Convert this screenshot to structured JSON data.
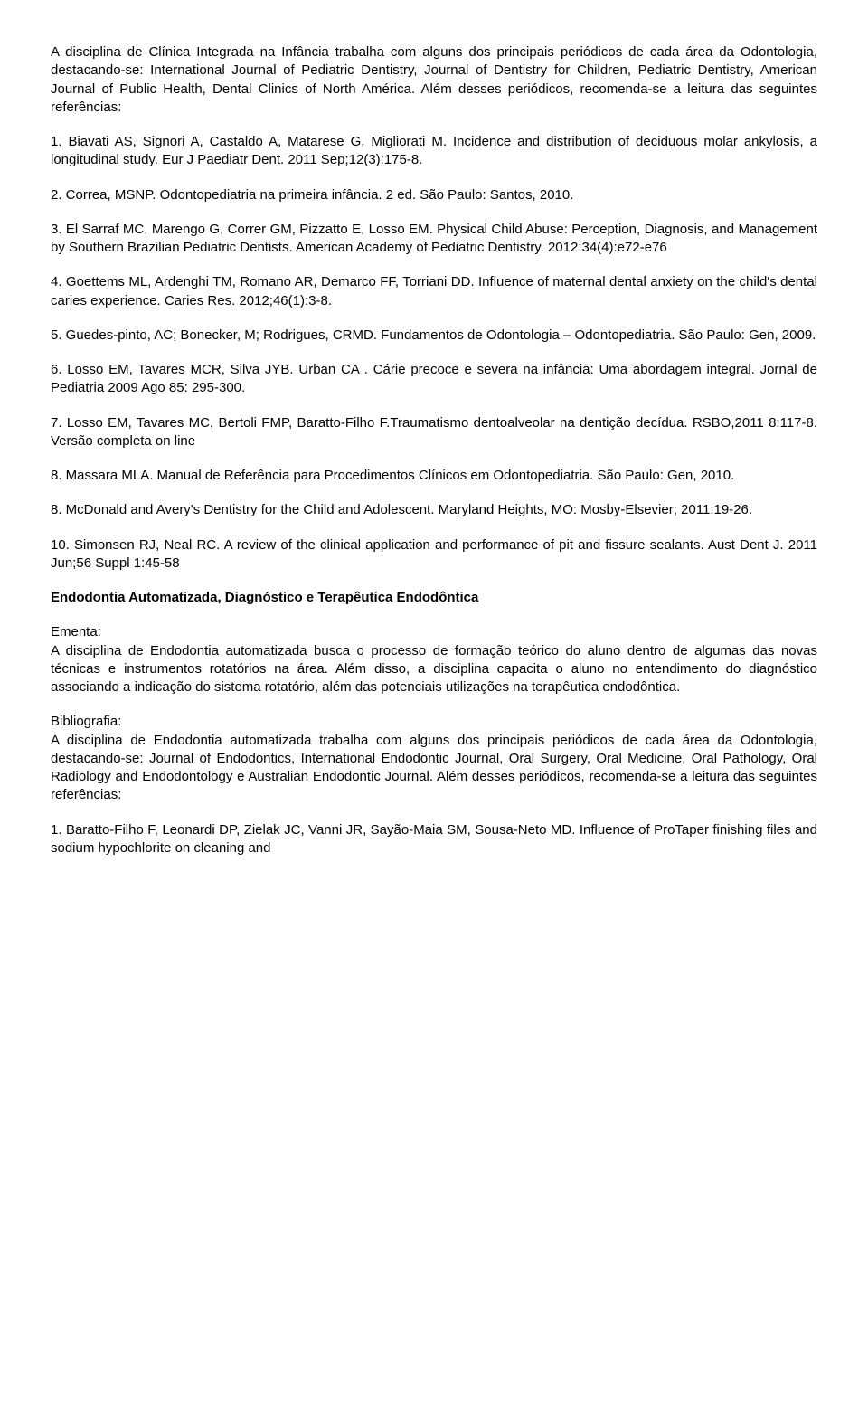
{
  "intro_paragraph": "A disciplina de Clínica Integrada na Infância trabalha com alguns dos principais periódicos de cada área da Odontologia, destacando-se: International Journal of Pediatric Dentistry, Journal of Dentistry for Children, Pediatric Dentistry, American Journal of Public Health, Dental Clinics of North América. Além desses periódicos, recomenda-se a leitura das seguintes referências:",
  "references": [
    "1. Biavati AS, Signori A, Castaldo A, Matarese G, Migliorati M. Incidence and distribution of deciduous molar ankylosis, a longitudinal study. Eur J Paediatr Dent. 2011 Sep;12(3):175-8.",
    "2. Correa, MSNP. Odontopediatria na primeira infância. 2 ed. São Paulo: Santos, 2010.",
    "3. El Sarraf MC, Marengo G, Correr GM, Pizzatto E, Losso EM. Physical Child Abuse: Perception, Diagnosis, and Management by Southern Brazilian Pediatric Dentists. American Academy of Pediatric Dentistry. 2012;34(4):e72-e76",
    "4. Goettems ML, Ardenghi TM, Romano AR, Demarco FF, Torriani DD. Influence of maternal dental anxiety on the child's dental caries experience. Caries Res. 2012;46(1):3-8.",
    "5. Guedes-pinto, AC; Bonecker, M; Rodrigues, CRMD. Fundamentos de Odontologia – Odontopediatria. São Paulo: Gen, 2009.",
    "6. Losso EM, Tavares MCR, Silva JYB. Urban CA . Cárie precoce e severa na infância: Uma abordagem integral. Jornal de Pediatria 2009 Ago 85: 295-300.",
    "7. Losso EM, Tavares MC, Bertoli FMP, Baratto-Filho F.Traumatismo dentoalveolar na dentição decídua. RSBO,2011 8:117-8. Versão completa on line",
    "8. Massara MLA. Manual de Referência para Procedimentos Clínicos em Odontopediatria. São Paulo: Gen, 2010.",
    "8. McDonald and Avery's Dentistry for the Child and Adolescent. Maryland Heights, MO: Mosby-Elsevier; 2011:19-26.",
    "10. Simonsen RJ, Neal RC. A review of the clinical application and performance of pit and fissure sealants. Aust Dent J. 2011 Jun;56 Suppl 1:45-58"
  ],
  "section2": {
    "heading": "Endodontia Automatizada, Diagnóstico e Terapêutica Endodôntica",
    "ementa_label": "Ementa:",
    "ementa_text": "A disciplina de Endodontia automatizada busca o processo de formação teórico do aluno dentro de algumas das novas técnicas e instrumentos rotatórios na área. Além disso, a disciplina capacita o aluno no entendimento do diagnóstico associando a indicação do sistema rotatório, além das potenciais utilizações na terapêutica endodôntica.",
    "biblio_label": "Bibliografia:",
    "biblio_text": "A disciplina de Endodontia automatizada trabalha com alguns dos principais periódicos de cada área da Odontologia, destacando-se: Journal of Endodontics, International Endodontic Journal, Oral Surgery, Oral Medicine, Oral Pathology, Oral Radiology and Endodontology e Australian Endodontic Journal. Além desses periódicos, recomenda-se a leitura das seguintes referências:",
    "ref1": "1. Baratto-Filho F, Leonardi DP, Zielak JC, Vanni JR, Sayão-Maia SM, Sousa-Neto MD. Influence of ProTaper finishing files and sodium hypochlorite on cleaning and"
  }
}
